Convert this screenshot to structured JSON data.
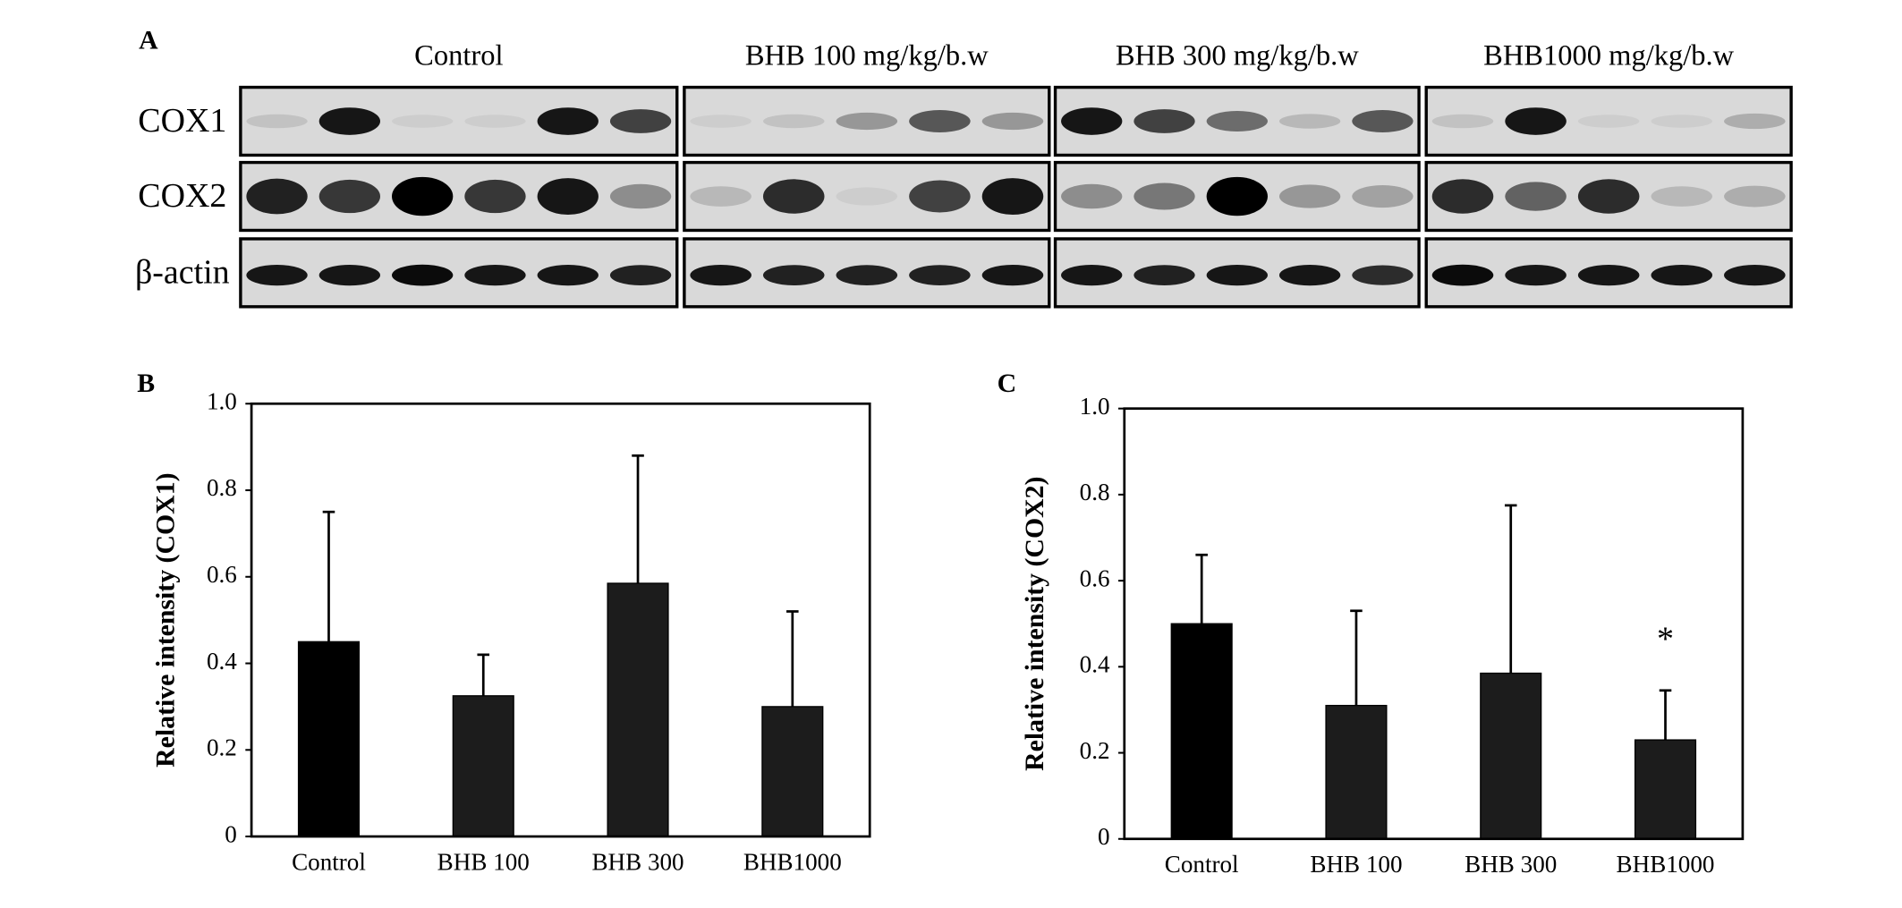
{
  "blot": {
    "label": "A",
    "groups": [
      "Control",
      "BHB 100 mg/kg/b.w",
      "BHB 300 mg/kg/b.w",
      "BHB1000 mg/kg/b.w"
    ],
    "rows": [
      "COX1",
      "COX2",
      "β-actin"
    ]
  },
  "chart_data": [
    {
      "type": "bar",
      "panel_label": "B",
      "y_label": "Relative intensity  (COX1)",
      "categories": [
        "Control",
        "BHB 100",
        "BHB 300",
        "BHB1000"
      ],
      "values": [
        0.45,
        0.325,
        0.585,
        0.3
      ],
      "errors": [
        0.3,
        0.095,
        0.295,
        0.22
      ],
      "colors": [
        "#000000",
        "#1c1c1c",
        "#1c1c1c",
        "#1c1c1c"
      ],
      "ylim": [
        0,
        1
      ],
      "yticks": [
        0,
        0.2,
        0.4,
        0.6,
        0.8,
        {
          "value": 1,
          "label": "1.0"
        }
      ]
    },
    {
      "type": "bar",
      "panel_label": "C",
      "y_label": "Relative intensity  (COX2)",
      "categories": [
        "Control",
        "BHB 100",
        "BHB 300",
        "BHB1000"
      ],
      "values": [
        0.5,
        0.31,
        0.385,
        0.23
      ],
      "errors": [
        0.16,
        0.22,
        0.39,
        0.115
      ],
      "colors": [
        "#000000",
        "#1c1c1c",
        "#1c1c1c",
        "#1c1c1c"
      ],
      "ylim": [
        0,
        1
      ],
      "yticks": [
        0,
        0.2,
        0.4,
        0.6,
        0.8,
        {
          "value": 1,
          "label": "1.0"
        }
      ],
      "annotation": "*"
    }
  ]
}
